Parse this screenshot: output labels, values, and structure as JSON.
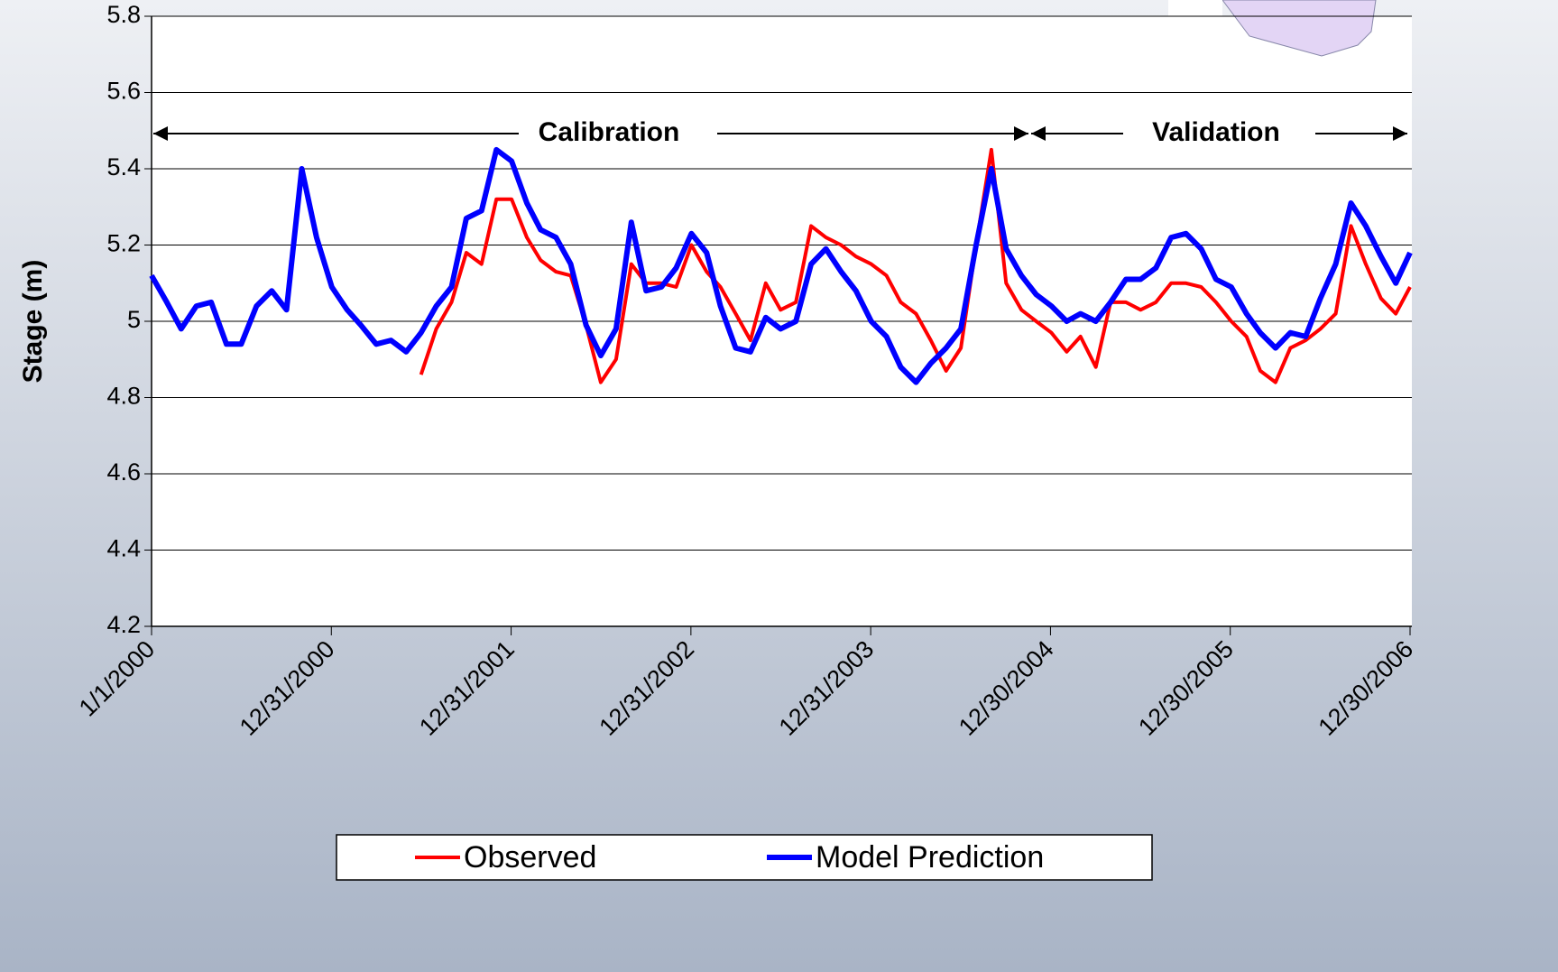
{
  "chart_data": {
    "type": "line",
    "y_label": "Stage (m)",
    "annotations": [
      "Calibration",
      "Validation"
    ],
    "x": [
      "1/1/2000",
      "2/1/2000",
      "3/1/2000",
      "4/1/2000",
      "5/1/2000",
      "6/1/2000",
      "7/1/2000",
      "8/1/2000",
      "9/1/2000",
      "10/1/2000",
      "11/1/2000",
      "12/1/2000",
      "1/1/2001",
      "2/1/2001",
      "3/1/2001",
      "4/1/2001",
      "5/1/2001",
      "6/1/2001",
      "7/1/2001",
      "8/1/2001",
      "9/1/2001",
      "10/1/2001",
      "11/1/2001",
      "12/1/2001",
      "1/1/2002",
      "2/1/2002",
      "3/1/2002",
      "4/1/2002",
      "5/1/2002",
      "6/1/2002",
      "7/1/2002",
      "8/1/2002",
      "9/1/2002",
      "10/1/2002",
      "11/1/2002",
      "12/1/2002",
      "1/1/2003",
      "2/1/2003",
      "3/1/2003",
      "4/1/2003",
      "5/1/2003",
      "6/1/2003",
      "7/1/2003",
      "8/1/2003",
      "9/1/2003",
      "10/1/2003",
      "11/1/2003",
      "12/1/2003",
      "1/1/2004",
      "2/1/2004",
      "3/1/2004",
      "4/1/2004",
      "5/1/2004",
      "6/1/2004",
      "7/1/2004",
      "8/1/2004",
      "9/1/2004",
      "10/1/2004",
      "11/1/2004",
      "12/1/2004",
      "1/1/2005",
      "2/1/2005",
      "3/1/2005",
      "4/1/2005",
      "5/1/2005",
      "6/1/2005",
      "7/1/2005",
      "8/1/2005",
      "9/1/2005",
      "10/1/2005",
      "11/1/2005",
      "12/1/2005",
      "1/1/2006",
      "2/1/2006",
      "3/1/2006",
      "4/1/2006",
      "5/1/2006",
      "6/1/2006",
      "7/1/2006",
      "8/1/2006",
      "9/1/2006",
      "10/1/2006",
      "11/1/2006",
      "12/1/2006",
      "12/30/2006"
    ],
    "series": [
      {
        "name": "Observed",
        "color": "#ff0000",
        "values": [
          null,
          null,
          null,
          null,
          null,
          null,
          null,
          null,
          null,
          null,
          null,
          null,
          null,
          null,
          null,
          null,
          null,
          null,
          4.86,
          4.98,
          5.05,
          5.18,
          5.15,
          5.32,
          5.32,
          5.22,
          5.16,
          5.13,
          5.12,
          4.99,
          4.84,
          4.9,
          5.15,
          5.1,
          5.1,
          5.09,
          5.2,
          5.13,
          5.09,
          5.02,
          4.95,
          5.1,
          5.03,
          5.05,
          5.25,
          5.22,
          5.2,
          5.17,
          5.15,
          5.12,
          5.05,
          5.02,
          4.95,
          4.87,
          4.93,
          5.2,
          5.45,
          5.1,
          5.03,
          5.0,
          4.97,
          4.92,
          4.96,
          4.88,
          5.05,
          5.05,
          5.03,
          5.05,
          5.1,
          5.1,
          5.09,
          5.05,
          5.0,
          4.96,
          4.87,
          4.84,
          4.93,
          4.95,
          4.98,
          5.02,
          5.25,
          5.15,
          5.06,
          5.02,
          5.09
        ]
      },
      {
        "name": "Model Prediction",
        "color": "#0000ff",
        "values": [
          5.12,
          5.05,
          4.98,
          5.04,
          5.05,
          4.94,
          4.94,
          5.04,
          5.08,
          5.03,
          5.4,
          5.22,
          5.09,
          5.03,
          4.99,
          4.94,
          4.95,
          4.92,
          4.97,
          5.04,
          5.09,
          5.27,
          5.29,
          5.45,
          5.42,
          5.31,
          5.24,
          5.22,
          5.15,
          4.99,
          4.91,
          4.98,
          5.26,
          5.08,
          5.09,
          5.14,
          5.23,
          5.18,
          5.04,
          4.93,
          4.92,
          5.01,
          4.98,
          5.0,
          5.15,
          5.19,
          5.13,
          5.08,
          5.0,
          4.96,
          4.88,
          4.84,
          4.89,
          4.93,
          4.98,
          5.2,
          5.4,
          5.19,
          5.12,
          5.07,
          5.04,
          5.0,
          5.02,
          5.0,
          5.05,
          5.11,
          5.11,
          5.14,
          5.22,
          5.23,
          5.19,
          5.11,
          5.09,
          5.02,
          4.97,
          4.93,
          4.97,
          4.96,
          5.06,
          5.15,
          5.31,
          5.25,
          5.17,
          5.1,
          5.18
        ]
      }
    ],
    "xlim": [
      "1/1/2000",
      "12/30/2006"
    ],
    "xticks": [
      "1/1/2000",
      "12/31/2000",
      "12/31/2001",
      "12/31/2002",
      "12/31/2003",
      "12/30/2004",
      "12/30/2005",
      "12/30/2006"
    ],
    "ylim": [
      4.2,
      5.8
    ],
    "yticks": [
      4.2,
      4.4,
      4.6,
      4.8,
      5,
      5.2,
      5.4,
      5.6,
      5.8
    ],
    "grid": true
  }
}
